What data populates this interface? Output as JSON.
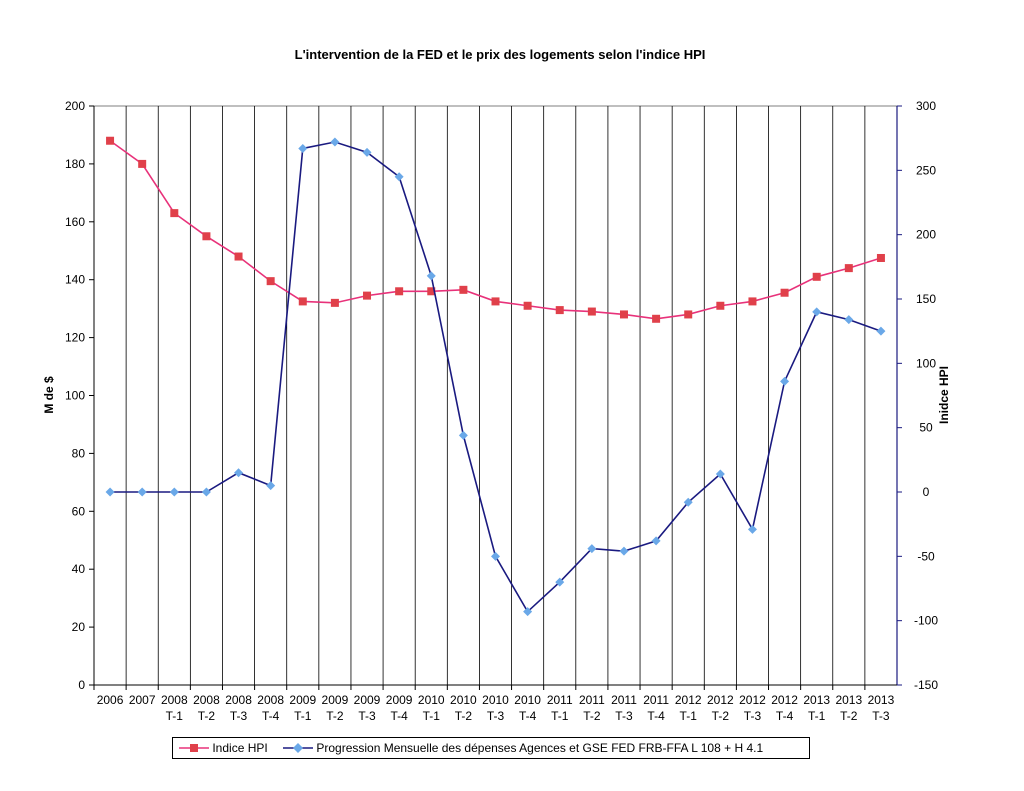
{
  "chart_data": {
    "type": "line",
    "title": "L'intervention de la FED et le prix des logements selon l'indice HPI",
    "ylabel_left": "M de $",
    "ylabel_right": "Inidce HPI",
    "categories": [
      [
        "2006",
        ""
      ],
      [
        "2007",
        ""
      ],
      [
        "2008",
        "T-1"
      ],
      [
        "2008",
        "T-2"
      ],
      [
        "2008",
        "T-3"
      ],
      [
        "2008",
        "T-4"
      ],
      [
        "2009",
        "T-1"
      ],
      [
        "2009",
        "T-2"
      ],
      [
        "2009",
        "T-3"
      ],
      [
        "2009",
        "T-4"
      ],
      [
        "2010",
        "T-1"
      ],
      [
        "2010",
        "T-2"
      ],
      [
        "2010",
        "T-3"
      ],
      [
        "2010",
        "T-4"
      ],
      [
        "2011",
        "T-1"
      ],
      [
        "2011",
        "T-2"
      ],
      [
        "2011",
        "T-3"
      ],
      [
        "2011",
        "T-4"
      ],
      [
        "2012",
        "T-1"
      ],
      [
        "2012",
        "T-2"
      ],
      [
        "2012",
        "T-3"
      ],
      [
        "2012",
        "T-4"
      ],
      [
        "2013",
        "T-1"
      ],
      [
        "2013",
        "T-2"
      ],
      [
        "2013",
        "T-3"
      ]
    ],
    "left_axis": {
      "min": 0,
      "max": 200,
      "step": 20,
      "ticks": [
        "0",
        "20",
        "40",
        "60",
        "80",
        "100",
        "120",
        "140",
        "160",
        "180",
        "200"
      ]
    },
    "right_axis": {
      "min": -150,
      "max": 300,
      "step": 50,
      "ticks": [
        "-150",
        "-100",
        "-50",
        "0",
        "50",
        "100",
        "150",
        "200",
        "250",
        "300"
      ]
    },
    "grid": "vertical",
    "legend_position": "bottom",
    "series": [
      {
        "name": "Indice HPI",
        "axis": "left",
        "color": "#e8327a",
        "marker": "square",
        "marker_color": "#e0404a",
        "values": [
          188,
          180,
          163,
          155,
          148,
          139.5,
          132.5,
          132,
          134.5,
          136,
          136,
          136.5,
          132.5,
          131,
          129.5,
          129,
          128,
          126.5,
          128,
          131,
          132.5,
          135.5,
          141,
          144,
          147.5
        ]
      },
      {
        "name": "Progression Mensuelle des dépenses Agences et GSE FED FRB-FFA L 108 + H 4.1",
        "axis": "right",
        "color": "#1a1a80",
        "marker": "diamond",
        "marker_color": "#6aa8e8",
        "values": [
          0,
          0,
          0,
          0,
          15,
          5,
          267,
          272,
          264,
          245,
          168,
          44,
          -50,
          -93,
          -70,
          -44,
          -46,
          -38,
          -8,
          14,
          -29,
          86,
          140,
          134,
          125
        ]
      }
    ]
  }
}
